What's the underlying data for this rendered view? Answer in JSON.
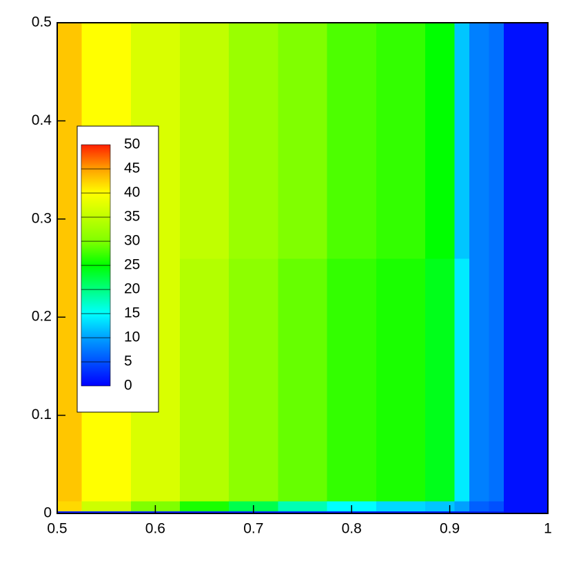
{
  "chart_data": {
    "type": "contour",
    "x": [
      0.5,
      0.55,
      0.6,
      0.65,
      0.7,
      0.75,
      0.8,
      0.85,
      0.9,
      0.91,
      0.93,
      0.95,
      0.96,
      0.98,
      1.0
    ],
    "y": [
      0,
      0.005,
      0.02,
      0.5
    ],
    "z": [
      [
        2,
        2,
        2,
        2,
        2,
        2,
        2,
        2,
        2,
        2,
        2,
        2,
        1,
        1,
        1
      ],
      [
        42,
        36,
        30,
        26,
        22,
        18,
        15,
        13,
        12,
        10,
        6,
        5,
        1,
        1,
        1
      ],
      [
        43,
        40,
        37,
        34,
        31,
        29,
        27,
        26,
        24,
        14,
        8,
        7,
        1,
        1,
        1
      ],
      [
        43,
        40,
        37,
        35,
        32,
        30,
        28,
        27,
        25,
        12,
        8,
        7,
        1,
        1,
        1
      ]
    ],
    "xlim": [
      0.5,
      1
    ],
    "ylim": [
      0,
      0.5
    ],
    "xticks": [
      0.5,
      0.6,
      0.7,
      0.8,
      0.9,
      1
    ],
    "yticks": [
      0,
      0.1,
      0.2,
      0.3,
      0.4,
      0.5
    ],
    "colorbar": {
      "levels": [
        0,
        5,
        10,
        15,
        20,
        25,
        30,
        35,
        40,
        45,
        50
      ],
      "colors": [
        "#0000ff",
        "#0050ff",
        "#00a0ff",
        "#00ffff",
        "#00ff80",
        "#00ff00",
        "#80ff00",
        "#c0ff00",
        "#ffff00",
        "#ffa000",
        "#ff2000"
      ]
    }
  }
}
